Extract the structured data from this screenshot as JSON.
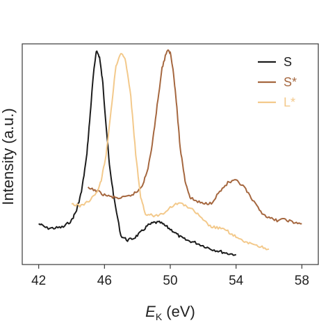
{
  "chart_data": {
    "type": "line",
    "xlabel_main": "E",
    "xlabel_sub": "K",
    "xlabel_unit": " (eV)",
    "ylabel": "Intensity (a.u.)",
    "xlim": [
      41.0,
      59.0
    ],
    "ylim": [
      0.0,
      1.0
    ],
    "xticks": [
      42,
      46,
      50,
      54,
      58
    ],
    "xtick_labels": [
      "42",
      "46",
      "50",
      "54",
      "58"
    ],
    "grid": false,
    "legend_position": "top-right",
    "series": [
      {
        "name": "S",
        "color": "#1c1c1c",
        "x": [
          42.0,
          42.5,
          43.0,
          43.5,
          44.0,
          44.3,
          44.6,
          44.9,
          45.1,
          45.3,
          45.5,
          45.7,
          45.9,
          46.1,
          46.3,
          46.6,
          47.0,
          47.4,
          47.8,
          48.2,
          48.6,
          49.0,
          49.4,
          49.8,
          50.2,
          50.6,
          51.0,
          51.5,
          52.0,
          52.5,
          53.0,
          53.5,
          54.0
        ],
        "y": [
          0.185,
          0.165,
          0.165,
          0.17,
          0.2,
          0.245,
          0.33,
          0.48,
          0.65,
          0.84,
          0.97,
          0.94,
          0.82,
          0.63,
          0.45,
          0.29,
          0.13,
          0.11,
          0.12,
          0.145,
          0.175,
          0.19,
          0.19,
          0.17,
          0.15,
          0.125,
          0.11,
          0.1,
          0.085,
          0.07,
          0.06,
          0.05,
          0.045
        ]
      },
      {
        "name": "S*",
        "color": "#a5673f",
        "x": [
          45.0,
          45.5,
          46.0,
          46.5,
          47.0,
          47.5,
          48.0,
          48.3,
          48.6,
          48.9,
          49.2,
          49.5,
          49.8,
          50.0,
          50.2,
          50.4,
          50.6,
          50.9,
          51.2,
          51.5,
          52.0,
          52.5,
          53.0,
          53.5,
          54.0,
          54.5,
          55.0,
          55.5,
          56.0,
          56.5,
          57.0,
          57.5,
          58.0
        ],
        "y": [
          0.345,
          0.335,
          0.315,
          0.305,
          0.3,
          0.31,
          0.33,
          0.36,
          0.42,
          0.54,
          0.72,
          0.89,
          0.97,
          0.96,
          0.87,
          0.71,
          0.53,
          0.38,
          0.305,
          0.29,
          0.275,
          0.28,
          0.33,
          0.37,
          0.38,
          0.35,
          0.29,
          0.24,
          0.21,
          0.2,
          0.205,
          0.19,
          0.185
        ]
      },
      {
        "name": "L*",
        "color": "#f3c98b",
        "x": [
          44.0,
          44.5,
          45.0,
          45.5,
          45.8,
          46.1,
          46.4,
          46.7,
          47.0,
          47.3,
          47.6,
          47.9,
          48.2,
          48.5,
          49.0,
          49.5,
          50.0,
          50.5,
          51.0,
          51.5,
          52.0,
          52.5,
          53.0,
          53.5,
          54.0,
          54.5,
          55.0,
          55.5,
          56.0
        ],
        "y": [
          0.275,
          0.265,
          0.285,
          0.32,
          0.38,
          0.5,
          0.7,
          0.9,
          0.96,
          0.92,
          0.76,
          0.5,
          0.3,
          0.23,
          0.22,
          0.23,
          0.26,
          0.28,
          0.265,
          0.24,
          0.2,
          0.17,
          0.165,
          0.15,
          0.125,
          0.1,
          0.095,
          0.08,
          0.07
        ]
      }
    ]
  }
}
